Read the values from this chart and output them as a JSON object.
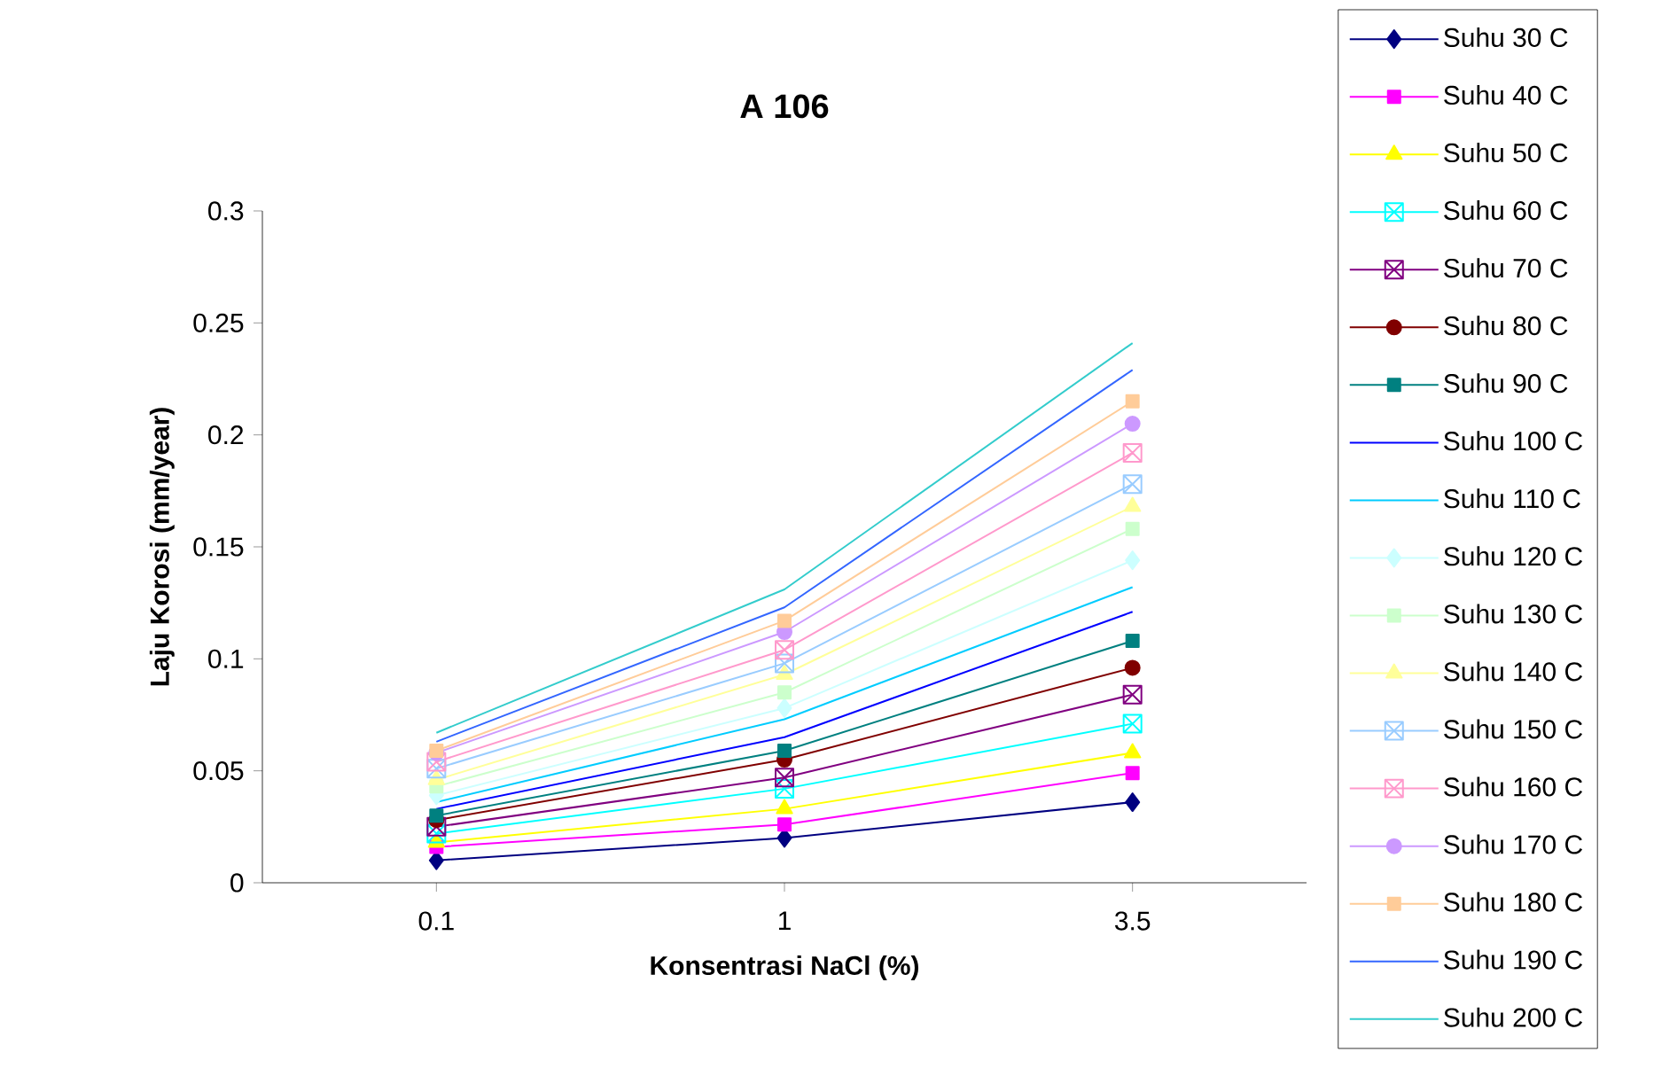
{
  "chart_data": {
    "type": "line",
    "title": "A 106",
    "xlabel": "Konsentrasi NaCl (%)",
    "ylabel": "Laju Korosi (mm/year)",
    "categories": [
      "0.1",
      "1",
      "3.5"
    ],
    "ylim": [
      0,
      0.3
    ],
    "yticks": [
      0,
      0.05,
      0.1,
      0.15,
      0.2,
      0.25,
      0.3
    ],
    "grid": false,
    "legend": "right",
    "series": [
      {
        "name": "Suhu 30 C",
        "color": "#000080",
        "marker": "diamond",
        "values": [
          0.01,
          0.02,
          0.036
        ]
      },
      {
        "name": "Suhu 40 C",
        "color": "#ff00ff",
        "marker": "square",
        "values": [
          0.016,
          0.026,
          0.049
        ]
      },
      {
        "name": "Suhu 50 C",
        "color": "#ffff00",
        "marker": "triangle",
        "values": [
          0.018,
          0.033,
          0.058
        ]
      },
      {
        "name": "Suhu 60 C",
        "color": "#00ffff",
        "marker": "cross",
        "values": [
          0.022,
          0.042,
          0.071
        ]
      },
      {
        "name": "Suhu 70 C",
        "color": "#800080",
        "marker": "cross",
        "values": [
          0.025,
          0.047,
          0.084
        ]
      },
      {
        "name": "Suhu 80 C",
        "color": "#800000",
        "marker": "circle",
        "values": [
          0.028,
          0.055,
          0.096
        ]
      },
      {
        "name": "Suhu 90 C",
        "color": "#008080",
        "marker": "square",
        "values": [
          0.03,
          0.059,
          0.108
        ]
      },
      {
        "name": "Suhu 100 C",
        "color": "#0000ff",
        "marker": "none",
        "values": [
          0.033,
          0.065,
          0.121
        ]
      },
      {
        "name": "Suhu 110 C",
        "color": "#00ccff",
        "marker": "none",
        "values": [
          0.036,
          0.073,
          0.132
        ]
      },
      {
        "name": "Suhu 120 C",
        "color": "#ccffff",
        "marker": "diamond",
        "values": [
          0.039,
          0.078,
          0.144
        ]
      },
      {
        "name": "Suhu 130 C",
        "color": "#ccffcc",
        "marker": "square",
        "values": [
          0.043,
          0.085,
          0.158
        ]
      },
      {
        "name": "Suhu 140 C",
        "color": "#ffff99",
        "marker": "triangle",
        "values": [
          0.046,
          0.093,
          0.168
        ]
      },
      {
        "name": "Suhu 150 C",
        "color": "#99ccff",
        "marker": "cross",
        "values": [
          0.051,
          0.098,
          0.178
        ]
      },
      {
        "name": "Suhu 160 C",
        "color": "#ff99cc",
        "marker": "cross",
        "values": [
          0.054,
          0.104,
          0.192
        ]
      },
      {
        "name": "Suhu 170 C",
        "color": "#cc99ff",
        "marker": "circle",
        "values": [
          0.058,
          0.112,
          0.205
        ]
      },
      {
        "name": "Suhu 180 C",
        "color": "#ffcc99",
        "marker": "square",
        "values": [
          0.059,
          0.117,
          0.215
        ]
      },
      {
        "name": "Suhu 190 C",
        "color": "#3366ff",
        "marker": "none",
        "values": [
          0.063,
          0.123,
          0.229
        ]
      },
      {
        "name": "Suhu 200 C",
        "color": "#33cccc",
        "marker": "none",
        "values": [
          0.067,
          0.131,
          0.241
        ]
      }
    ]
  }
}
